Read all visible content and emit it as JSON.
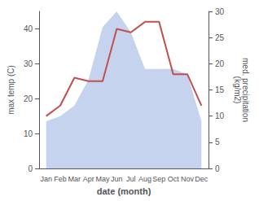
{
  "chart_data": {
    "type": "line",
    "categories": [
      "Jan",
      "Feb",
      "Mar",
      "Apr",
      "May",
      "Jun",
      "Jul",
      "Aug",
      "Sep",
      "Oct",
      "Nov",
      "Dec"
    ],
    "xlabel": "date (month)",
    "ylabel": "max temp (C)",
    "y2label": "med. precipitation\n(kg/m2)",
    "series": [
      {
        "type": "area",
        "color": "#c5d3ee",
        "axis": "y2",
        "values": [
          9,
          10,
          12,
          17,
          27,
          30,
          26,
          19,
          19,
          19,
          18,
          9
        ]
      },
      {
        "type": "line",
        "color": "#c0504d",
        "values": [
          15,
          18,
          26,
          25,
          25,
          40,
          39,
          42,
          42,
          27,
          27,
          18
        ]
      }
    ],
    "ylim": [
      0,
      45
    ],
    "yticks": [
      0,
      10,
      20,
      30,
      40
    ],
    "y2lim": [
      0,
      30
    ],
    "y2ticks": [
      0,
      5,
      10,
      15,
      20,
      25,
      30
    ],
    "grid": false
  }
}
